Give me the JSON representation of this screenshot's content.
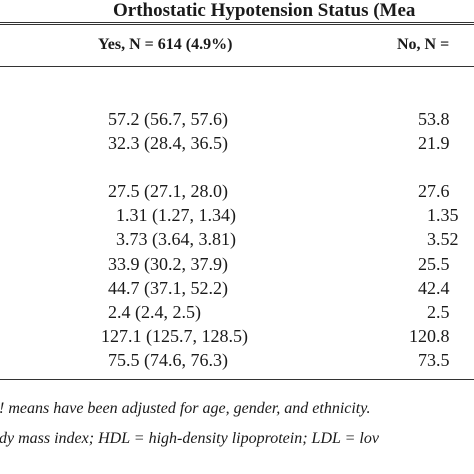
{
  "table": {
    "title": "Orthostatic Hypotension Status (Mea",
    "columns": [
      {
        "label": "Yes, N = 614 (4.9%)"
      },
      {
        "label": "No, N ="
      }
    ],
    "rows": [
      {
        "yes": "57.2 (56.7, 57.6)",
        "no": "53.8"
      },
      {
        "yes": "32.3 (28.4, 36.5)",
        "no": "21.9"
      },
      {
        "yes": "27.5 (27.1, 28.0)",
        "no": "27.6"
      },
      {
        "yes": "1.31 (1.27, 1.34)",
        "no": "1.35"
      },
      {
        "yes": "3.73 (3.64, 3.81)",
        "no": "3.52"
      },
      {
        "yes": "33.9 (30.2, 37.9)",
        "no": "25.5"
      },
      {
        "yes": "44.7 (37.1, 52.2)",
        "no": "42.4"
      },
      {
        "yes": "2.4 (2.4, 2.5)",
        "no": "2.5"
      },
      {
        "yes": "127.1 (125.7, 128.5)",
        "no": "120.8"
      },
      {
        "yes": "75.5 (74.6, 76.3)",
        "no": "73.5"
      }
    ]
  },
  "footnotes": [
    "! means have been adjusted for age, gender, and ethnicity.",
    "dy mass index; HDL = high-density lipoprotein; LDL = lov"
  ]
}
